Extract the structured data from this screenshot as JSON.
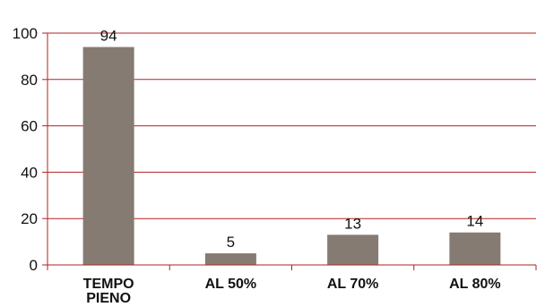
{
  "chart_data": {
    "type": "bar",
    "categories": [
      [
        "TEMPO",
        "PIENO"
      ],
      [
        "AL 50%"
      ],
      [
        "AL 70%"
      ],
      [
        "AL 80%"
      ]
    ],
    "values": [
      94,
      5,
      13,
      14
    ],
    "data_labels": [
      "94",
      "5",
      "13",
      "14"
    ],
    "title": "",
    "xlabel": "",
    "ylabel": "",
    "ylim": [
      0,
      100
    ],
    "yticks": [
      0,
      20,
      40,
      60,
      80,
      100
    ],
    "grid": true,
    "colors": {
      "bar": "#857B72",
      "grid": "#B22222",
      "axis": "#B22222"
    }
  }
}
